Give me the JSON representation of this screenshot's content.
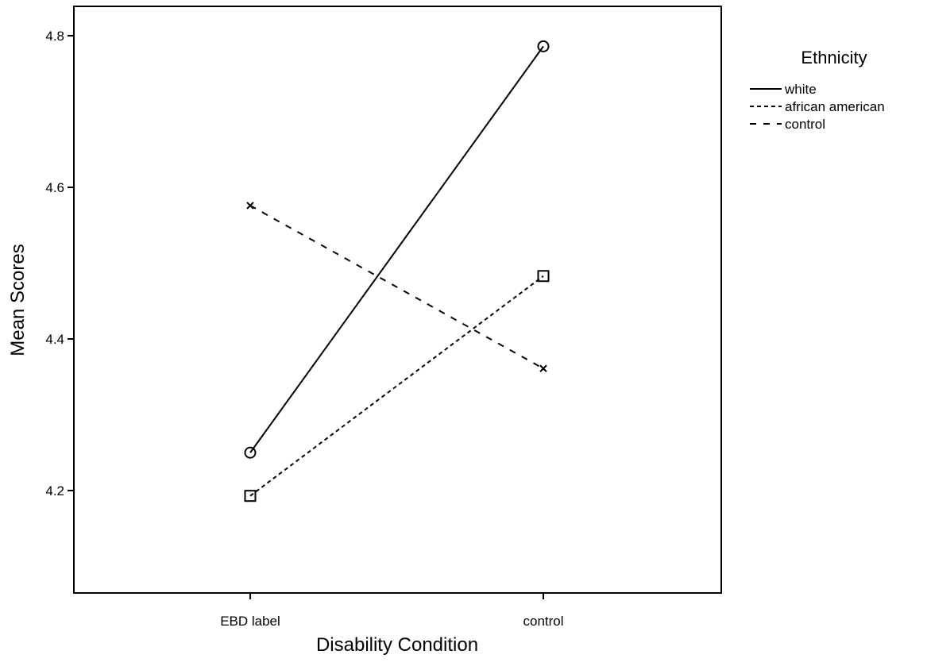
{
  "chart_data": {
    "type": "line",
    "categories": [
      "EBD label",
      "control"
    ],
    "xlabel": "Disability Condition",
    "ylabel": "Mean Scores",
    "ylim": [
      4.1,
      4.86
    ],
    "yticks": [
      "4.2",
      "4.4",
      "4.6",
      "4.8"
    ],
    "grid": false,
    "legend": {
      "title": "Ethnicity",
      "position": "right"
    },
    "series": [
      {
        "name": "white",
        "values": [
          4.25,
          4.786
        ],
        "marker": "circle",
        "dash": "solid"
      },
      {
        "name": "african american",
        "values": [
          4.193,
          4.483
        ],
        "marker": "square",
        "dash": "short-dash"
      },
      {
        "name": "control",
        "values": [
          4.576,
          4.361
        ],
        "marker": "x",
        "dash": "long-dash"
      }
    ]
  }
}
